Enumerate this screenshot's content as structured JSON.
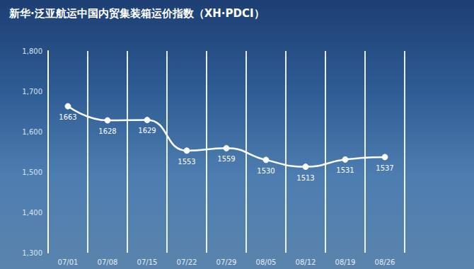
{
  "chart_data": {
    "type": "line",
    "title": "新华·泛亚航运中国内贸集装箱运价指数（XH·PDCI）",
    "categories": [
      "07/01",
      "07/08",
      "07/15",
      "07/22",
      "07/29",
      "08/05",
      "08/12",
      "08/19",
      "08/26"
    ],
    "values": [
      1663,
      1628,
      1629,
      1553,
      1559,
      1530,
      1513,
      1531,
      1537
    ],
    "color": "#ffffff",
    "ylim": [
      1300,
      1800
    ],
    "yticks": [
      {
        "value": 1300,
        "label": "1,300"
      },
      {
        "value": 1400,
        "label": "1,400"
      },
      {
        "value": 1500,
        "label": "1,500"
      },
      {
        "value": 1600,
        "label": "1,600"
      },
      {
        "value": 1700,
        "label": "1,700"
      },
      {
        "value": 1800,
        "label": "1,800"
      }
    ],
    "grid": true,
    "data_labels": true,
    "marker": "circle",
    "line_style": "smooth"
  }
}
